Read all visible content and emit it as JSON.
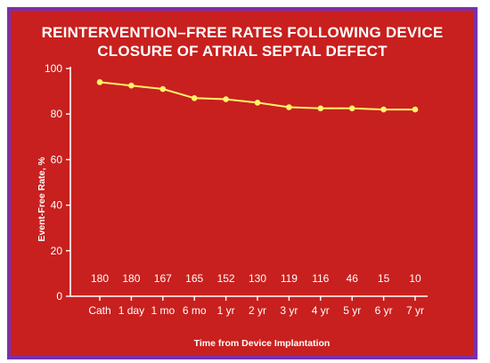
{
  "chart_data": {
    "type": "line",
    "title": [
      "REINTERVENTION–FREE RATES FOLLOWING DEVICE",
      "CLOSURE OF ATRIAL SEPTAL DEFECT"
    ],
    "xlabel": "Time from Device Implantation",
    "ylabel": "Event-Free Rate, %",
    "categories": [
      "Cath",
      "1 day",
      "1 mo",
      "6 mo",
      "1 yr",
      "2 yr",
      "3 yr",
      "4 yr",
      "5 yr",
      "6 yr",
      "7 yr"
    ],
    "values": [
      94,
      92.5,
      91,
      87,
      86.5,
      85,
      83,
      82.5,
      82.5,
      82,
      82
    ],
    "patients_at_risk": [
      "180",
      "180",
      "167",
      "165",
      "152",
      "130",
      "119",
      "116",
      "46",
      "15",
      "10"
    ],
    "ylim": [
      0,
      100
    ],
    "yticks": [
      0,
      20,
      40,
      60,
      80,
      100
    ],
    "grid": false,
    "colors": {
      "background": "#c8201e",
      "line": "#fff36b",
      "text": "#ffffff",
      "frame": "#7b2fa8"
    }
  }
}
